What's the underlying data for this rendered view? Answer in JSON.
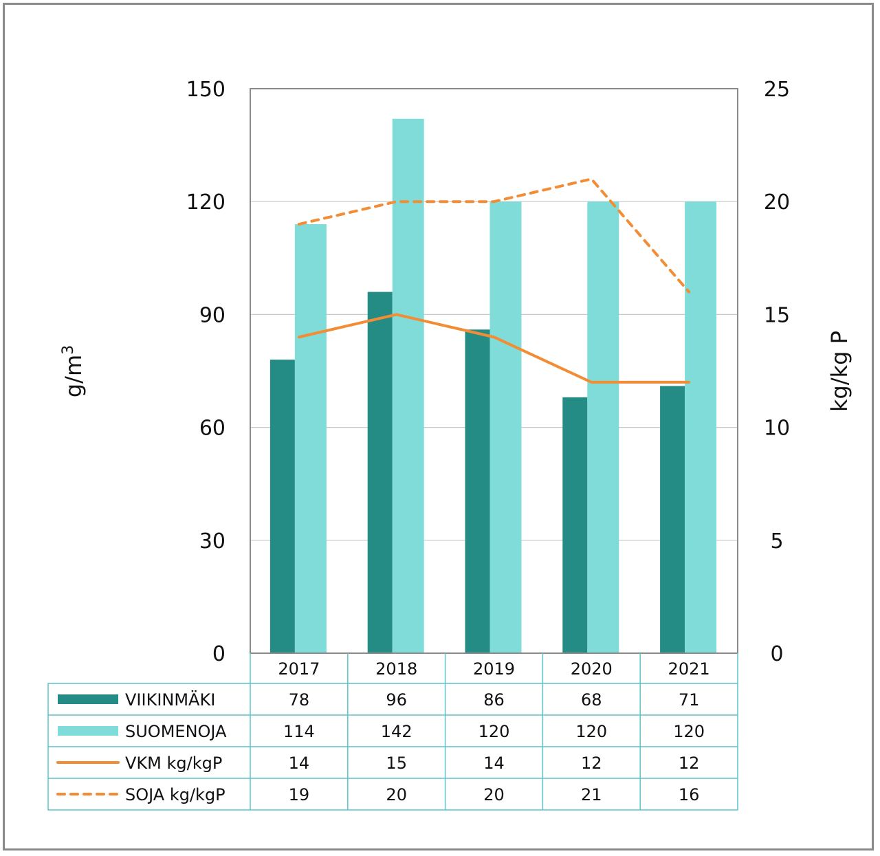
{
  "chart_data": {
    "type": "bar",
    "title": "",
    "categories": [
      "2017",
      "2018",
      "2019",
      "2020",
      "2021"
    ],
    "series": [
      {
        "name": "VIIKINMÄKI",
        "kind": "bar",
        "axis": "left",
        "color": "#258B85",
        "values": [
          78,
          96,
          86,
          68,
          71
        ],
        "labels": [
          "78",
          "96",
          "86",
          "68",
          "71"
        ]
      },
      {
        "name": "SUOMENOJA",
        "kind": "bar",
        "axis": "left",
        "color": "#80DCD8",
        "values": [
          114,
          142,
          120,
          120,
          120
        ],
        "labels": [
          "114",
          "142",
          "120",
          "120",
          "120"
        ]
      },
      {
        "name": "VKM kg/kgP",
        "kind": "line",
        "dash": "solid",
        "axis": "right",
        "color": "#F28C35",
        "values": [
          14,
          15,
          14,
          12,
          12
        ],
        "labels": [
          "14",
          "15",
          "14",
          "12",
          "12"
        ]
      },
      {
        "name": "SOJA kg/kgP",
        "kind": "line",
        "dash": "dashed",
        "axis": "right",
        "color": "#F28C35",
        "values": [
          19,
          20,
          20,
          21,
          16
        ],
        "labels": [
          "19",
          "20",
          "20",
          "21",
          "16"
        ]
      }
    ],
    "ylabel": "g/m",
    "ylabel_superscript": "3",
    "y2label": "kg/kg P",
    "ylim": [
      0,
      150
    ],
    "y2lim": [
      0,
      25
    ],
    "yticks": [
      "0",
      "30",
      "60",
      "90",
      "120",
      "150"
    ],
    "y2ticks": [
      "0",
      "5",
      "10",
      "15",
      "20",
      "25"
    ],
    "grid": true,
    "legend": "data-table-below"
  }
}
